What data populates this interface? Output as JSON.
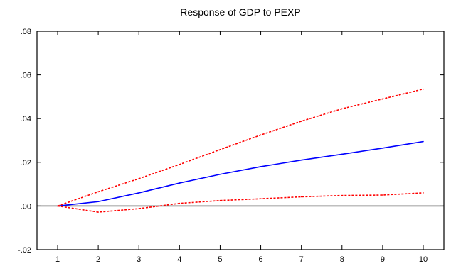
{
  "chart_data": {
    "type": "line",
    "title": "Response of GDP to PEXP",
    "xlabel": "",
    "ylabel": "",
    "x": [
      1,
      2,
      3,
      4,
      5,
      6,
      7,
      8,
      9,
      10
    ],
    "xlim": [
      1,
      10
    ],
    "ylim": [
      -0.02,
      0.08
    ],
    "yticks": [
      ".08",
      ".06",
      ".04",
      ".02",
      ".00",
      "-.02"
    ],
    "ytick_values": [
      0.08,
      0.06,
      0.04,
      0.02,
      0.0,
      -0.02
    ],
    "xticks": [
      "1",
      "2",
      "3",
      "4",
      "5",
      "6",
      "7",
      "8",
      "9",
      "10"
    ],
    "grid": false,
    "legend": "none",
    "zero_line": true,
    "series": [
      {
        "values": [
          0.0,
          0.002,
          0.006,
          0.0105,
          0.0145,
          0.018,
          0.021,
          0.0237,
          0.0265,
          0.0295
        ],
        "color": "#0000ff",
        "style": "solid"
      },
      {
        "values": [
          0.0,
          0.0065,
          0.0125,
          0.019,
          0.0258,
          0.0325,
          0.0388,
          0.0445,
          0.049,
          0.0535
        ],
        "color": "#ff0000",
        "style": "dashed"
      },
      {
        "values": [
          0.0,
          -0.0028,
          -0.0012,
          0.0012,
          0.0025,
          0.0033,
          0.0042,
          0.0048,
          0.005,
          0.006
        ],
        "color": "#ff0000",
        "style": "dashed"
      }
    ]
  }
}
